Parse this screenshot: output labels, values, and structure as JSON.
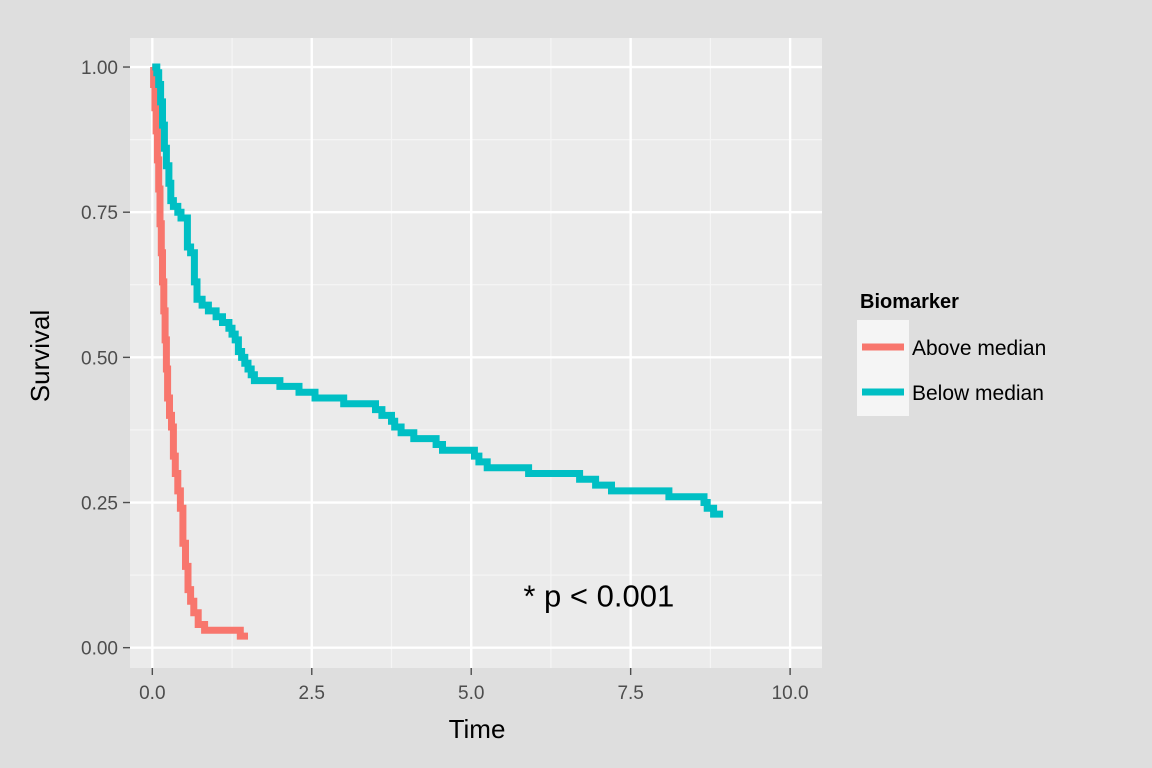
{
  "chart_data": {
    "type": "line",
    "step": true,
    "title": "",
    "xlabel": "Time",
    "ylabel": "Survival",
    "xlim": [
      -0.35,
      10.5
    ],
    "ylim": [
      -0.035,
      1.05
    ],
    "x_ticks": [
      0,
      2.5,
      5,
      7.5,
      10
    ],
    "x_tick_labels": [
      "0.0",
      "2.5",
      "5.0",
      "7.5",
      "10.0"
    ],
    "y_ticks": [
      0,
      0.25,
      0.5,
      0.75,
      1
    ],
    "y_tick_labels": [
      "0.00",
      "0.25",
      "0.50",
      "0.75",
      "1.00"
    ],
    "grid": true,
    "legend": {
      "title": "Biomarker",
      "position": "right"
    },
    "annotation": {
      "text": "* p < 0.001",
      "x": 7.0,
      "y": 0.09
    },
    "series": [
      {
        "name": "Above median",
        "color": "#F8766D",
        "points": [
          [
            0,
            1.0
          ],
          [
            0.02,
            0.97
          ],
          [
            0.04,
            0.93
          ],
          [
            0.06,
            0.89
          ],
          [
            0.08,
            0.84
          ],
          [
            0.1,
            0.79
          ],
          [
            0.12,
            0.73
          ],
          [
            0.14,
            0.68
          ],
          [
            0.16,
            0.63
          ],
          [
            0.18,
            0.58
          ],
          [
            0.2,
            0.53
          ],
          [
            0.22,
            0.48
          ],
          [
            0.24,
            0.43
          ],
          [
            0.27,
            0.4
          ],
          [
            0.3,
            0.38
          ],
          [
            0.33,
            0.33
          ],
          [
            0.36,
            0.3
          ],
          [
            0.4,
            0.27
          ],
          [
            0.44,
            0.24
          ],
          [
            0.48,
            0.18
          ],
          [
            0.52,
            0.14
          ],
          [
            0.56,
            0.1
          ],
          [
            0.6,
            0.08
          ],
          [
            0.65,
            0.06
          ],
          [
            0.72,
            0.04
          ],
          [
            0.82,
            0.03
          ],
          [
            1.0,
            0.03
          ],
          [
            1.2,
            0.03
          ],
          [
            1.38,
            0.02
          ],
          [
            1.5,
            0.02
          ]
        ]
      },
      {
        "name": "Below median",
        "color": "#00BFC4",
        "points": [
          [
            0,
            1.0
          ],
          [
            0.07,
            0.99
          ],
          [
            0.1,
            0.97
          ],
          [
            0.13,
            0.94
          ],
          [
            0.16,
            0.9
          ],
          [
            0.19,
            0.86
          ],
          [
            0.22,
            0.83
          ],
          [
            0.26,
            0.8
          ],
          [
            0.29,
            0.77
          ],
          [
            0.33,
            0.76
          ],
          [
            0.4,
            0.75
          ],
          [
            0.45,
            0.74
          ],
          [
            0.55,
            0.69
          ],
          [
            0.6,
            0.68
          ],
          [
            0.66,
            0.63
          ],
          [
            0.7,
            0.6
          ],
          [
            0.78,
            0.59
          ],
          [
            0.88,
            0.58
          ],
          [
            1.0,
            0.57
          ],
          [
            1.1,
            0.56
          ],
          [
            1.2,
            0.55
          ],
          [
            1.25,
            0.54
          ],
          [
            1.3,
            0.53
          ],
          [
            1.35,
            0.51
          ],
          [
            1.4,
            0.5
          ],
          [
            1.45,
            0.49
          ],
          [
            1.5,
            0.48
          ],
          [
            1.55,
            0.47
          ],
          [
            1.6,
            0.46
          ],
          [
            1.9,
            0.46
          ],
          [
            2.0,
            0.45
          ],
          [
            2.2,
            0.45
          ],
          [
            2.3,
            0.44
          ],
          [
            2.5,
            0.44
          ],
          [
            2.55,
            0.43
          ],
          [
            2.9,
            0.43
          ],
          [
            3.0,
            0.42
          ],
          [
            3.3,
            0.42
          ],
          [
            3.5,
            0.41
          ],
          [
            3.6,
            0.4
          ],
          [
            3.75,
            0.39
          ],
          [
            3.8,
            0.38
          ],
          [
            3.9,
            0.37
          ],
          [
            4.05,
            0.37
          ],
          [
            4.1,
            0.36
          ],
          [
            4.3,
            0.36
          ],
          [
            4.45,
            0.35
          ],
          [
            4.55,
            0.34
          ],
          [
            4.7,
            0.34
          ],
          [
            4.95,
            0.34
          ],
          [
            5.05,
            0.33
          ],
          [
            5.12,
            0.32
          ],
          [
            5.25,
            0.31
          ],
          [
            5.75,
            0.31
          ],
          [
            5.9,
            0.3
          ],
          [
            6.6,
            0.3
          ],
          [
            6.7,
            0.29
          ],
          [
            6.9,
            0.29
          ],
          [
            6.95,
            0.28
          ],
          [
            7.1,
            0.28
          ],
          [
            7.2,
            0.27
          ],
          [
            8.0,
            0.27
          ],
          [
            8.1,
            0.26
          ],
          [
            8.55,
            0.26
          ],
          [
            8.65,
            0.25
          ],
          [
            8.7,
            0.24
          ],
          [
            8.8,
            0.23
          ],
          [
            8.95,
            0.23
          ]
        ]
      }
    ]
  }
}
